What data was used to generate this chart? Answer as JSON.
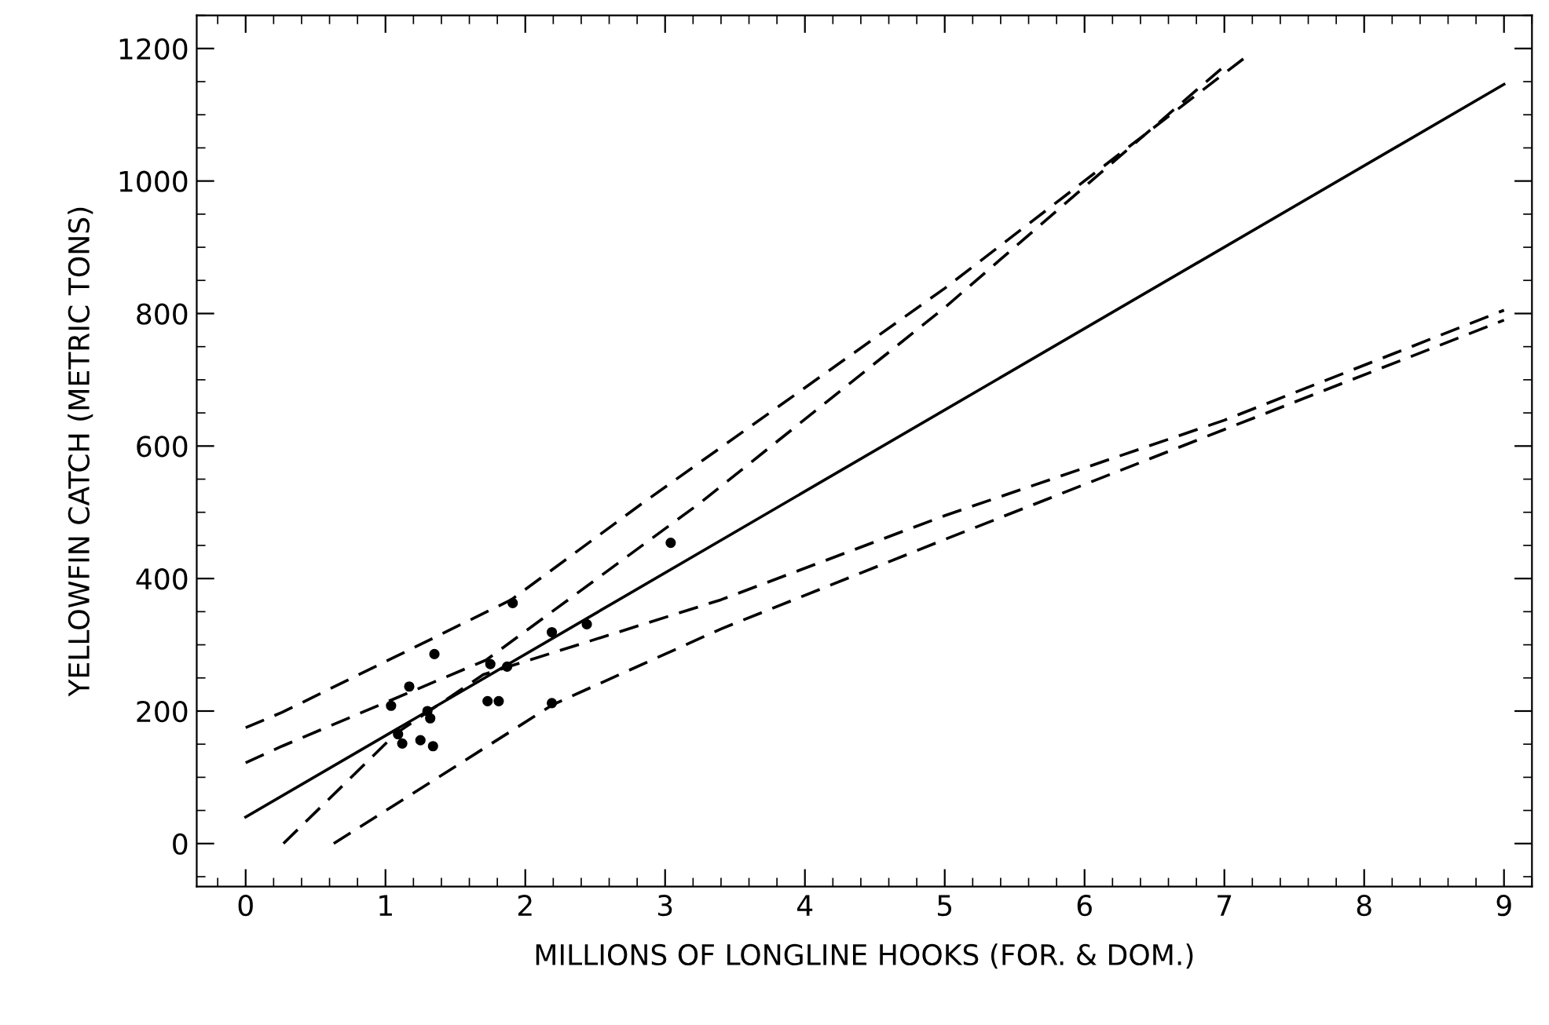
{
  "chart_data": {
    "type": "scatter",
    "xlabel": "MILLIONS OF LONGLINE HOOKS (FOR. & DOM.)",
    "ylabel": "YELLOWFIN CATCH (METRIC TONS)",
    "xlim": [
      -0.35,
      9.2
    ],
    "ylim": [
      -65,
      1250
    ],
    "xticks": [
      0,
      1,
      2,
      3,
      4,
      5,
      6,
      7,
      8,
      9
    ],
    "yticks": [
      0,
      200,
      400,
      600,
      800,
      1000,
      1200
    ],
    "grid": false,
    "legend": false,
    "series": [
      {
        "color": "#000000",
        "marker": "circle",
        "x": [
          3.04,
          1.91,
          1.35,
          2.19,
          2.44,
          1.17,
          1.04,
          1.75,
          1.87,
          1.3,
          1.32,
          1.09,
          1.12,
          1.25,
          1.34,
          1.73,
          1.81,
          2.19
        ],
        "values": [
          454,
          363,
          286,
          319,
          331,
          237,
          208,
          271,
          267,
          200,
          189,
          165,
          151,
          156,
          147,
          215,
          215,
          212
        ]
      },
      {
        "type": "line",
        "color": "#000000",
        "marker": "none",
        "line_style": "solid",
        "x": [
          0,
          9
        ],
        "values": [
          40,
          1146
        ]
      },
      {
        "type": "line",
        "color": "#000000",
        "marker": "none",
        "line_style": "dashed",
        "x": [
          0,
          0.26,
          1.9,
          2.84,
          5,
          7.17
        ],
        "values": [
          175,
          198,
          368,
          514,
          838,
          1190
        ]
      },
      {
        "type": "line",
        "color": "#000000",
        "marker": "none",
        "line_style": "dashed",
        "x": [
          0,
          0.26,
          1.72,
          3.25,
          5,
          7.03
        ],
        "values": [
          122,
          147,
          277,
          514,
          809,
          1179
        ]
      },
      {
        "type": "line",
        "color": "#000000",
        "marker": "none",
        "line_style": "dashed",
        "x": [
          0.27,
          1.08,
          1.7,
          3.4,
          5,
          7,
          9
        ],
        "values": [
          0,
          167,
          255,
          368,
          495,
          639,
          805
        ]
      },
      {
        "type": "line",
        "color": "#000000",
        "marker": "none",
        "line_style": "dashed",
        "x": [
          0.63,
          2.2,
          3.4,
          5,
          7,
          9
        ],
        "values": [
          0,
          210,
          324,
          459,
          625,
          790
        ]
      }
    ]
  }
}
